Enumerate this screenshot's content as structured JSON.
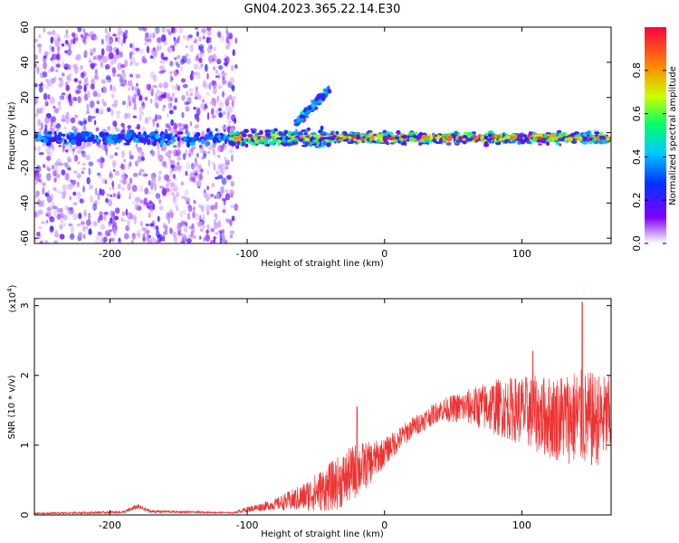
{
  "title": "GN04.2023.365.22.14.E30",
  "chart_data": [
    {
      "type": "heatmap",
      "name": "spectrogram",
      "xlabel": "Height of straight line (km)",
      "ylabel": "Frequency (Hz)",
      "xlim": [
        -255,
        165
      ],
      "ylim": [
        -63,
        60
      ],
      "xticks": [
        -200,
        -100,
        0,
        100
      ],
      "yticks": [
        -60,
        -40,
        -20,
        0,
        20,
        40,
        60
      ],
      "colorbar": {
        "label": "Normalized spectral amplitude",
        "range": [
          0,
          1
        ],
        "ticks": [
          "0.0",
          "0.2",
          "0.4",
          "0.6",
          "0.8"
        ],
        "colormap": [
          "#ffffff",
          "#7f00ff",
          "#0033ff",
          "#00ccff",
          "#00ff66",
          "#ccff00",
          "#ff8800",
          "#ff0044"
        ]
      },
      "features": {
        "noise_band_x": [
          -255,
          -108
        ],
        "signal_center_hz": -3,
        "diagonal_feature": {
          "x": [
            -65,
            -40
          ],
          "y": [
            5,
            25
          ]
        },
        "dense_x": [
          -112,
          165
        ]
      }
    },
    {
      "type": "line",
      "name": "snr",
      "xlabel": "Height of straight line (km)",
      "ylabel": "SNR (10 * v/v)",
      "yscale_label": "(x10",
      "yscale_exp": "4",
      "yscale_close": ")",
      "xlim": [
        -255,
        165
      ],
      "ylim": [
        0,
        3.1
      ],
      "xticks": [
        -200,
        -100,
        0,
        100
      ],
      "yticks": [
        0,
        1,
        2,
        3
      ],
      "color": "#ee3333",
      "envelope": {
        "x": [
          -255,
          -190,
          -180,
          -170,
          -110,
          -100,
          -80,
          -60,
          -40,
          -30,
          -20,
          -10,
          0,
          20,
          40,
          60,
          80,
          100,
          120,
          140,
          150,
          165
        ],
        "mid": [
          0.02,
          0.04,
          0.12,
          0.05,
          0.03,
          0.08,
          0.15,
          0.25,
          0.4,
          0.5,
          0.65,
          0.75,
          0.9,
          1.25,
          1.5,
          1.55,
          1.55,
          1.5,
          1.4,
          1.4,
          1.35,
          1.4
        ],
        "amp": [
          0.01,
          0.02,
          0.04,
          0.02,
          0.01,
          0.04,
          0.08,
          0.2,
          0.35,
          0.4,
          0.4,
          0.3,
          0.2,
          0.15,
          0.15,
          0.25,
          0.4,
          0.5,
          0.6,
          0.7,
          0.7,
          0.6
        ]
      },
      "peaks": [
        {
          "x": 144,
          "y": 3.05
        },
        {
          "x": -20,
          "y": 1.55
        },
        {
          "x": 108,
          "y": 2.35
        }
      ]
    }
  ]
}
